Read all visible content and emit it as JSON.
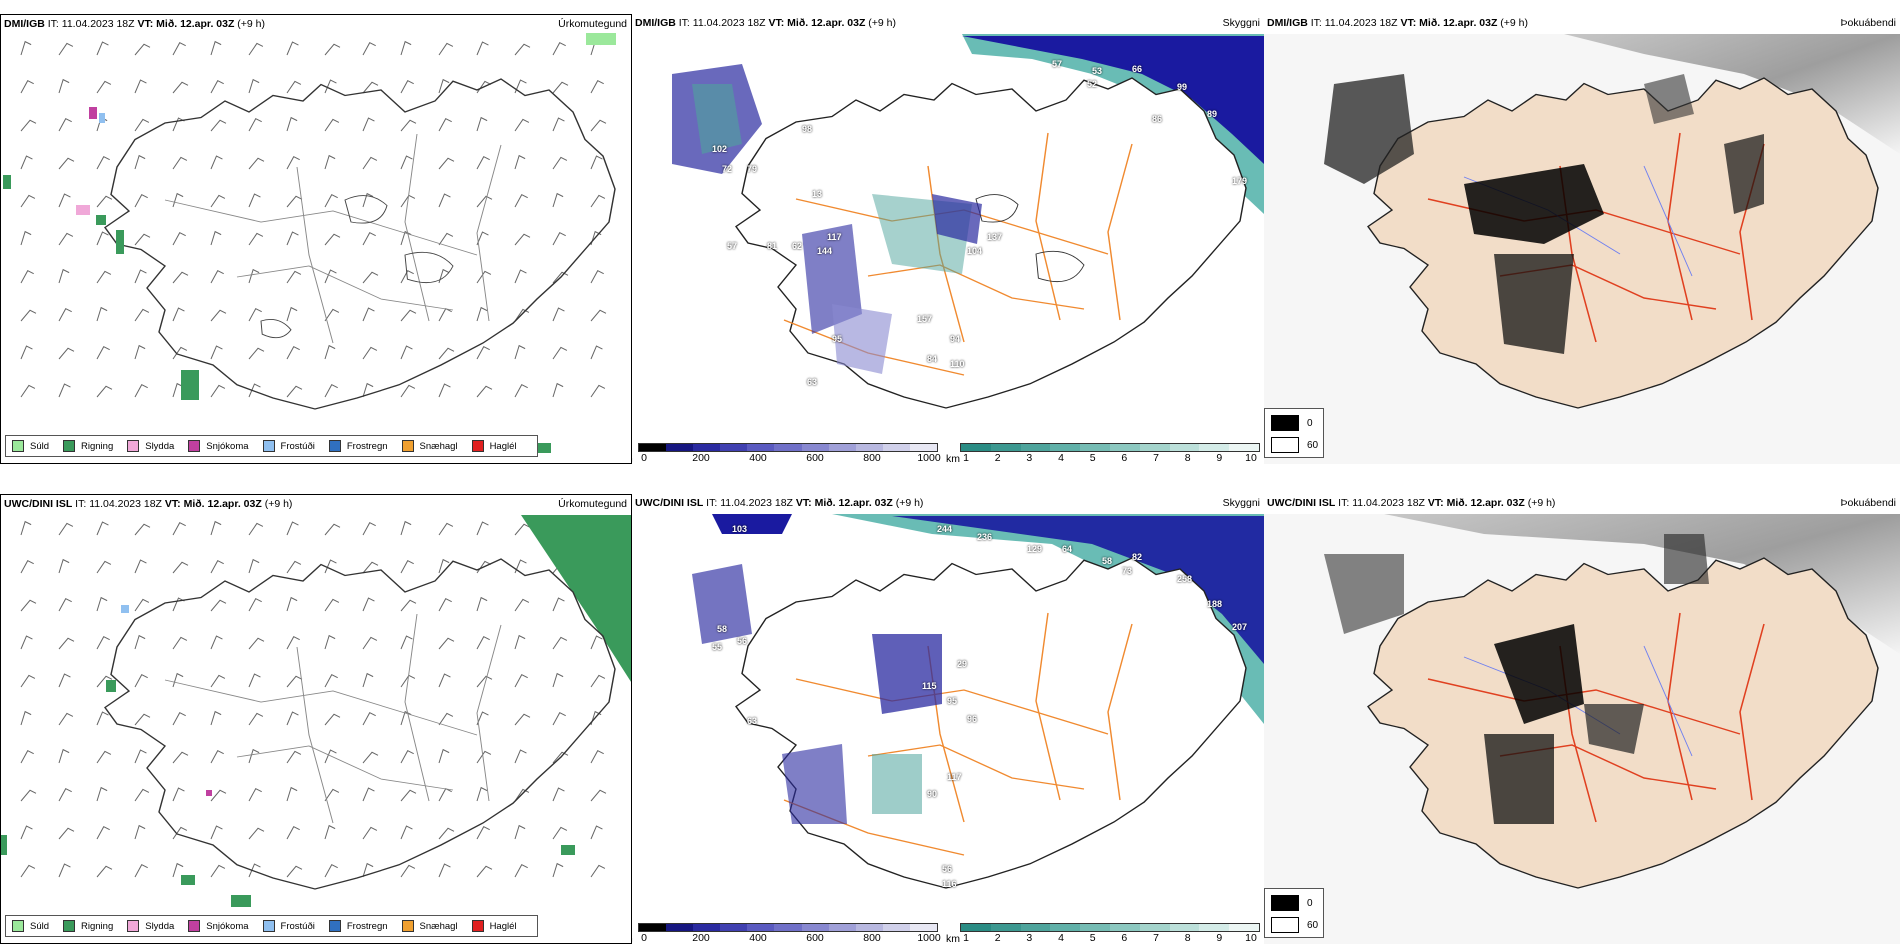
{
  "precip_legend": [
    {
      "label": "Súld",
      "color": "#9be89b"
    },
    {
      "label": "Rigning",
      "color": "#3a9a5b"
    },
    {
      "label": "Slydda",
      "color": "#f0a8d8"
    },
    {
      "label": "Snjókoma",
      "color": "#c040a0"
    },
    {
      "label": "Frostúði",
      "color": "#90c0f0"
    },
    {
      "label": "Frostregn",
      "color": "#3070c0"
    },
    {
      "label": "Snæhagl",
      "color": "#f0a030"
    },
    {
      "label": "Haglél",
      "color": "#e02020"
    }
  ],
  "height_bar": {
    "unit": "m",
    "ticks": [
      "0",
      "200",
      "400",
      "600",
      "800",
      "1000"
    ],
    "colors": [
      "#000000",
      "#161680",
      "#2a2aa0",
      "#4040b0",
      "#5a5ac0",
      "#7070c8",
      "#8888d0",
      "#a0a0d8",
      "#b8b8e0",
      "#d0d0ea",
      "#e8e8f4"
    ]
  },
  "vis_bar": {
    "unit": "km",
    "ticks": [
      "1",
      "2",
      "3",
      "4",
      "5",
      "6",
      "7",
      "8",
      "9",
      "10"
    ],
    "colors": [
      "#2a8c84",
      "#3c9890",
      "#4ea49c",
      "#60b0a8",
      "#76bcb4",
      "#8cc8c0",
      "#a4d4cc",
      "#bce0da",
      "#d4ece8",
      "#ecf6f4"
    ]
  },
  "fog_legend": {
    "high": "0",
    "low": "60"
  },
  "rows": [
    {
      "model": "DMI/IGB",
      "it_label": "IT:",
      "it_value": "11.04.2023 18Z",
      "vt_label": "VT:",
      "vt_value": "Mið. 12.apr. 03Z",
      "offset": "(+9 h)",
      "titles": {
        "precip": "Úrkomutegund",
        "vis": "Skyggni",
        "fog": "Þokuábendi"
      },
      "vis_labels": [
        "57",
        "53",
        "66",
        "52",
        "99",
        "86",
        "89",
        "179",
        "98",
        "102",
        "72",
        "79",
        "13",
        "57",
        "81",
        "62",
        "117",
        "144",
        "104",
        "137",
        "95",
        "157",
        "94",
        "110",
        "84",
        "63"
      ]
    },
    {
      "model": "UWC/DINI ISL",
      "it_label": "IT:",
      "it_value": "11.04.2023 18Z",
      "vt_label": "VT:",
      "vt_value": "Mið. 12.apr. 03Z",
      "offset": "(+9 h)",
      "titles": {
        "precip": "Úrkomutegund",
        "vis": "Skyggni",
        "fog": "Þokuábendi"
      },
      "vis_labels": [
        "103",
        "244",
        "236",
        "129",
        "64",
        "58",
        "82",
        "73",
        "258",
        "188",
        "207",
        "58",
        "55",
        "56",
        "63",
        "115",
        "95",
        "96",
        "29",
        "117",
        "90",
        "56",
        "116"
      ]
    }
  ]
}
